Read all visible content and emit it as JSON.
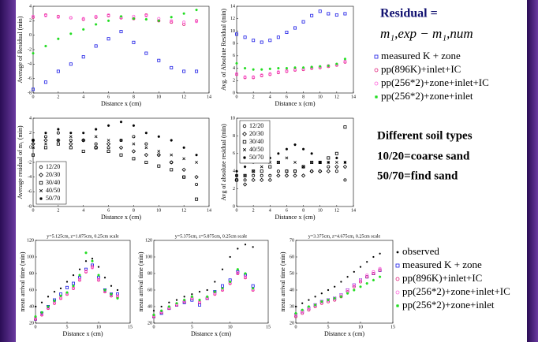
{
  "side": {
    "residual_title": "Residual =",
    "formula": "m₁,exp − m₁,num",
    "soil_title": "Different soil types",
    "soil_coarse": "10/20=coarse sand",
    "soil_fine": "50/70=find sand"
  },
  "chart_data": [
    {
      "type": "scatter",
      "x": [
        0,
        1,
        2,
        3,
        4,
        5,
        6,
        7,
        8,
        9,
        10,
        11,
        12,
        13
      ],
      "xlim": [
        0,
        14
      ],
      "ylim": [
        -8,
        4
      ],
      "xticks": [
        0,
        2,
        4,
        6,
        8,
        10,
        12,
        14
      ],
      "yticks": [
        -8,
        -6,
        -4,
        -2,
        0,
        2,
        4
      ],
      "xlabel": "Distance x (cm)",
      "ylabel": "Average of Residual (min)",
      "series": [
        {
          "name": "measured K + zone",
          "color": "#1a1ae6",
          "marker": "square",
          "values": [
            -7.5,
            -6.5,
            -5,
            -4,
            -3,
            -1.5,
            -0.5,
            0.5,
            -1,
            -2.5,
            -3.5,
            -4.5,
            -5,
            -5
          ]
        },
        {
          "name": "pp(896K)+inlet+IC",
          "color": "#e0207a",
          "marker": "circle",
          "values": [
            2.5,
            2.8,
            2.6,
            2.4,
            2.2,
            2.5,
            2.7,
            2.4,
            2.3,
            2.8,
            2,
            1.8,
            1.5,
            2
          ]
        },
        {
          "name": "pp(256*2)+zone+inlet+IC",
          "color": "#ff66dd",
          "marker": "circle",
          "values": [
            2.6,
            2.7,
            2.5,
            2.4,
            2.3,
            2.6,
            2.8,
            2.5,
            2.6,
            2.7,
            2.3,
            2,
            1.8,
            1.9
          ]
        },
        {
          "name": "pp(256*2)+zone+inlet",
          "color": "#22dd22",
          "marker": "star",
          "values": [
            -2.5,
            -1.5,
            -0.5,
            0.2,
            0.8,
            1.5,
            2,
            2.6,
            2.3,
            2.2,
            2,
            2.5,
            3,
            3.5
          ]
        }
      ]
    },
    {
      "type": "scatter",
      "x": [
        0,
        1,
        2,
        3,
        4,
        5,
        6,
        7,
        8,
        9,
        10,
        11,
        12,
        13
      ],
      "xlim": [
        0,
        14
      ],
      "ylim": [
        0,
        14
      ],
      "xticks": [
        0,
        2,
        4,
        6,
        8,
        10,
        12,
        14
      ],
      "yticks": [
        0,
        2,
        4,
        6,
        8,
        10,
        12,
        14
      ],
      "xlabel": "Distance x (cm)",
      "ylabel": "Avg. of Absolute Residual (min)",
      "series": [
        {
          "color": "#1a1ae6",
          "marker": "square",
          "values": [
            9.5,
            9,
            8.5,
            8.2,
            8.5,
            9,
            9.8,
            10.5,
            11.5,
            12.5,
            13.2,
            12.8,
            12.6,
            12.8
          ]
        },
        {
          "color": "#e0207a",
          "marker": "circle",
          "values": [
            3,
            2.5,
            2.5,
            2.8,
            3,
            3.3,
            3.5,
            3.7,
            3.8,
            4,
            4.1,
            4.3,
            4.5,
            5
          ]
        },
        {
          "color": "#ff66dd",
          "marker": "circle",
          "values": [
            3.1,
            2.6,
            2.6,
            2.9,
            3.1,
            3.4,
            3.6,
            3.8,
            3.9,
            4.1,
            4.2,
            4.4,
            4.6,
            5.1
          ]
        },
        {
          "color": "#22dd22",
          "marker": "star",
          "values": [
            4.8,
            4,
            3.8,
            3.8,
            3.9,
            4,
            4,
            4.1,
            4.1,
            4.2,
            4.3,
            4.4,
            4.7,
            5.5
          ]
        }
      ]
    },
    {
      "type": "scatter",
      "x": [
        0,
        1,
        2,
        3,
        4,
        5,
        6,
        7,
        8,
        9,
        10,
        11,
        12,
        13
      ],
      "xlim": [
        0,
        14
      ],
      "ylim": [
        -8,
        4
      ],
      "xticks": [
        0,
        2,
        4,
        6,
        8,
        10,
        12,
        14
      ],
      "yticks": [
        -8,
        -6,
        -4,
        -2,
        0,
        2,
        4
      ],
      "xlabel": "Distance x (cm)",
      "ylabel": "Average residual of m₁ (min)",
      "legend": "lower left",
      "series": [
        {
          "name": "12/20",
          "color": "#000000",
          "marker": "circle",
          "values": [
            1,
            1.5,
            2,
            1,
            1,
            0.5,
            0,
            1,
            1.5,
            0.5,
            -1,
            -2,
            -4,
            -5
          ]
        },
        {
          "name": "20/30",
          "color": "#000000",
          "marker": "diamond",
          "values": [
            0.5,
            1,
            1,
            0.5,
            1,
            0,
            0.5,
            0,
            -0.5,
            -1,
            -1,
            -2,
            -3,
            -4
          ]
        },
        {
          "name": "30/40",
          "color": "#000000",
          "marker": "square",
          "values": [
            -1,
            0,
            0.5,
            0,
            -0.5,
            0,
            -0.5,
            -1,
            -1.5,
            -2,
            -2.5,
            -3,
            -4,
            -7
          ]
        },
        {
          "name": "40/50",
          "color": "#000000",
          "marker": "x",
          "values": [
            0,
            0.5,
            1,
            1.5,
            1,
            1.5,
            1,
            1,
            0.5,
            0,
            -0.5,
            -1,
            -1.5,
            -2
          ]
        },
        {
          "name": "50/70",
          "color": "#000000",
          "marker": "star",
          "values": [
            1,
            2,
            2.5,
            2,
            2,
            2.5,
            3,
            3.5,
            3,
            2,
            1.5,
            1,
            0,
            -1
          ]
        }
      ]
    },
    {
      "type": "scatter",
      "x": [
        0,
        1,
        2,
        3,
        4,
        5,
        6,
        7,
        8,
        9,
        10,
        11,
        12,
        13
      ],
      "xlim": [
        0,
        14
      ],
      "ylim": [
        0,
        10
      ],
      "xticks": [
        0,
        2,
        4,
        6,
        8,
        10,
        12,
        14
      ],
      "yticks": [
        0,
        2,
        4,
        6,
        8,
        10
      ],
      "xlabel": "Distance x (cm)",
      "ylabel": "Avg of absolute residual (min)",
      "legend": "upper left",
      "series": [
        {
          "name": "12/20",
          "color": "#000000",
          "marker": "circle",
          "values": [
            3.5,
            3,
            3.5,
            3.5,
            3.5,
            4,
            4,
            4,
            4.5,
            4,
            4,
            4.5,
            4,
            3
          ]
        },
        {
          "name": "20/30",
          "color": "#000000",
          "marker": "diamond",
          "values": [
            3,
            2.5,
            3,
            3,
            3,
            3.5,
            3.5,
            3.5,
            3.5,
            4,
            4,
            4,
            4.5,
            4.5
          ]
        },
        {
          "name": "30/40",
          "color": "#000000",
          "marker": "square",
          "values": [
            3,
            3.5,
            4,
            4,
            4.5,
            5,
            4,
            4,
            4.5,
            5,
            5,
            5.5,
            6,
            9
          ]
        },
        {
          "name": "40/50",
          "color": "#000000",
          "marker": "x",
          "values": [
            3.5,
            3.5,
            4,
            4.5,
            5,
            5,
            5.5,
            5,
            4.5,
            5,
            5,
            5,
            5,
            5
          ]
        },
        {
          "name": "50/70",
          "color": "#000000",
          "marker": "star",
          "values": [
            4,
            4.5,
            5,
            5.5,
            5.5,
            6,
            6.5,
            7,
            6.5,
            6,
            5,
            5,
            5.5,
            5
          ]
        }
      ]
    },
    {
      "type": "scatter",
      "title": "y=5.125cm, z=1.875cm, 0.25cm scale",
      "x": [
        0,
        1,
        2,
        3,
        4,
        5,
        6,
        7,
        8,
        9,
        10,
        11,
        12,
        13
      ],
      "xlim": [
        0,
        15
      ],
      "ylim": [
        20,
        120
      ],
      "xticks": [
        0,
        5,
        10,
        15
      ],
      "yticks": [
        20,
        40,
        60,
        80,
        100,
        120
      ],
      "xlabel": "Distance x (cm)",
      "ylabel": "mean arrival time (min)",
      "series": [
        {
          "color": "#000000",
          "marker": "dot",
          "values": [
            40,
            45,
            52,
            58,
            62,
            70,
            78,
            85,
            95,
            98,
            88,
            75,
            65,
            60
          ]
        },
        {
          "color": "#1a1ae6",
          "marker": "square",
          "values": [
            25,
            32,
            40,
            48,
            55,
            63,
            68,
            75,
            85,
            90,
            75,
            60,
            55,
            55
          ]
        },
        {
          "color": "#e0207a",
          "marker": "circle",
          "values": [
            25,
            30,
            38,
            44,
            50,
            55,
            62,
            72,
            82,
            88,
            72,
            58,
            53,
            52
          ]
        },
        {
          "color": "#ff66dd",
          "marker": "circle",
          "values": [
            26,
            31,
            39,
            45,
            51,
            56,
            63,
            73,
            83,
            87,
            73,
            59,
            54,
            53
          ]
        },
        {
          "color": "#22dd22",
          "marker": "star",
          "values": [
            28,
            33,
            40,
            47,
            53,
            57,
            65,
            78,
            105,
            95,
            78,
            60,
            55,
            50
          ]
        }
      ]
    },
    {
      "type": "scatter",
      "title": "y=5.375cm, z=5.875cm, 0.25cm scale",
      "x": [
        0,
        1,
        2,
        3,
        4,
        5,
        6,
        7,
        8,
        9,
        10,
        11,
        12,
        13
      ],
      "xlim": [
        0,
        15
      ],
      "ylim": [
        20,
        120
      ],
      "xticks": [
        0,
        5,
        10,
        15
      ],
      "yticks": [
        20,
        40,
        60,
        80,
        100,
        120
      ],
      "xlabel": "Distance x (cm)",
      "ylabel": "mean arrival time (min)",
      "series": [
        {
          "color": "#000000",
          "marker": "dot",
          "values": [
            35,
            40,
            45,
            48,
            52,
            55,
            58,
            60,
            70,
            85,
            100,
            110,
            115,
            112
          ]
        },
        {
          "color": "#1a1ae6",
          "marker": "square",
          "values": [
            28,
            32,
            38,
            42,
            45,
            48,
            42,
            50,
            58,
            65,
            72,
            82,
            78,
            65
          ]
        },
        {
          "color": "#e0207a",
          "marker": "circle",
          "values": [
            28,
            33,
            38,
            42,
            46,
            50,
            45,
            50,
            55,
            60,
            68,
            80,
            75,
            60
          ]
        },
        {
          "color": "#ff66dd",
          "marker": "circle",
          "values": [
            29,
            34,
            39,
            43,
            47,
            51,
            46,
            51,
            56,
            61,
            69,
            81,
            76,
            61
          ]
        },
        {
          "color": "#22dd22",
          "marker": "star",
          "values": [
            30,
            35,
            40,
            44,
            48,
            52,
            48,
            52,
            58,
            62,
            70,
            85,
            80,
            62
          ]
        }
      ]
    },
    {
      "type": "scatter",
      "title": "y=3.375cm, z=4.675cm, 0.25cm scale",
      "x": [
        0,
        1,
        2,
        3,
        4,
        5,
        6,
        7,
        8,
        9,
        10,
        11,
        12,
        13
      ],
      "xlim": [
        0,
        15
      ],
      "ylim": [
        20,
        70
      ],
      "xticks": [
        0,
        5,
        10,
        15
      ],
      "yticks": [
        20,
        30,
        40,
        50,
        60,
        70
      ],
      "xlabel": "Distance x (cm)",
      "ylabel": "mean arrival time (min)",
      "series": [
        {
          "name": "observed",
          "color": "#000000",
          "marker": "dot",
          "values": [
            30,
            32,
            34,
            36,
            38,
            40,
            42,
            45,
            48,
            51,
            54,
            57,
            60,
            62
          ]
        },
        {
          "name": "measured K + zone",
          "color": "#1a1ae6",
          "marker": "square",
          "values": [
            25,
            27,
            29,
            31,
            33,
            34,
            35,
            37,
            40,
            43,
            46,
            48,
            50,
            52
          ]
        },
        {
          "name": "pp(896K)+inlet+IC",
          "color": "#e0207a",
          "marker": "circle",
          "values": [
            24,
            26,
            28,
            30,
            32,
            33,
            34,
            36,
            39,
            42,
            45,
            48,
            50,
            52
          ]
        },
        {
          "name": "pp(256*2)+zone+inlet+IC",
          "color": "#ff66dd",
          "marker": "circle",
          "values": [
            25,
            27,
            29,
            31,
            33,
            34,
            35,
            37,
            40,
            43,
            46,
            49,
            51,
            53
          ]
        },
        {
          "name": "pp(256*2)+zone+inlet",
          "color": "#22dd22",
          "marker": "star",
          "values": [
            26,
            28,
            30,
            31,
            33,
            34,
            35,
            36,
            38,
            40,
            42,
            44,
            46,
            48
          ]
        }
      ]
    }
  ]
}
